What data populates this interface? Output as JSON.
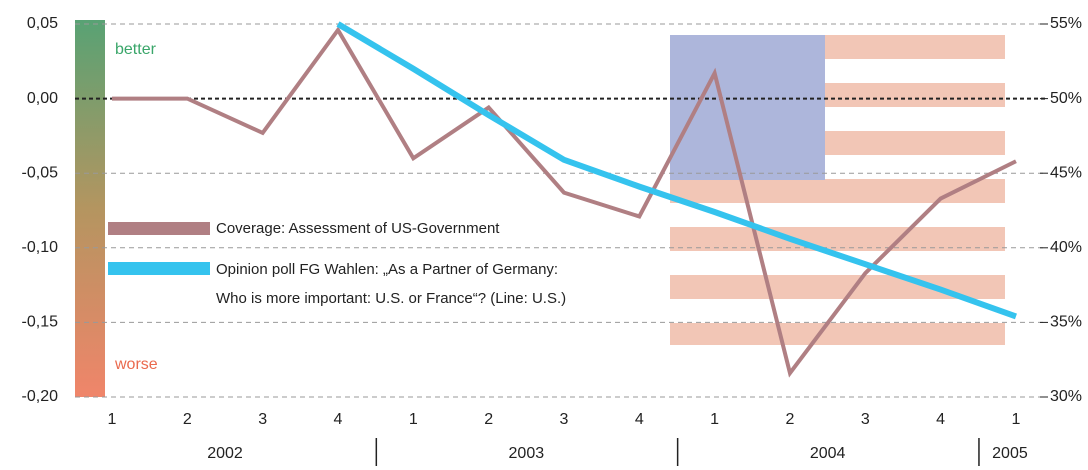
{
  "chart_data": {
    "type": "line",
    "scale_labels": {
      "top": "better",
      "bottom": "worse"
    },
    "categories": [
      "1",
      "2",
      "3",
      "4",
      "1",
      "2",
      "3",
      "4",
      "1",
      "2",
      "3",
      "4",
      "1"
    ],
    "year_labels": [
      "2002",
      "2003",
      "2004",
      "2005"
    ],
    "series": [
      {
        "name": "Coverage: Assessment of US-Government",
        "color": "#b07f83",
        "values": [
          0.0,
          0.0,
          -0.023,
          0.046,
          -0.04,
          -0.006,
          -0.063,
          -0.079,
          0.017,
          -0.184,
          -0.117,
          -0.067,
          -0.042
        ]
      },
      {
        "name": "Opinion poll FG Wahlen: „As a Partner of Germany:\nWho is more important: U.S. or France“? (Line: U.S.)",
        "color": "#35c3ee",
        "axis": "y2",
        "values": [
          null,
          null,
          null,
          55,
          52.0,
          48.9,
          45.9,
          44.1,
          42.4,
          40.6,
          38.9,
          37.2,
          35.4
        ]
      }
    ],
    "ylim": [
      -0.2,
      0.05
    ],
    "yticks": [
      {
        "value": -0.2,
        "label": "-0,20"
      },
      {
        "value": -0.15,
        "label": "-0,15"
      },
      {
        "value": -0.1,
        "label": "-0,10"
      },
      {
        "value": -0.05,
        "label": "-0,05"
      },
      {
        "value": 0,
        "label": "0,00"
      },
      {
        "value": 0.05,
        "label": "0,05"
      }
    ],
    "y2lim": [
      30,
      55
    ],
    "y2ticks": [
      {
        "value": 30,
        "label": "30%"
      },
      {
        "value": 35,
        "label": "35%"
      },
      {
        "value": 40,
        "label": "40%"
      },
      {
        "value": 45,
        "label": "45%"
      },
      {
        "value": 50,
        "label": "50%"
      },
      {
        "value": 55,
        "label": "55%"
      }
    ],
    "grid": true
  }
}
